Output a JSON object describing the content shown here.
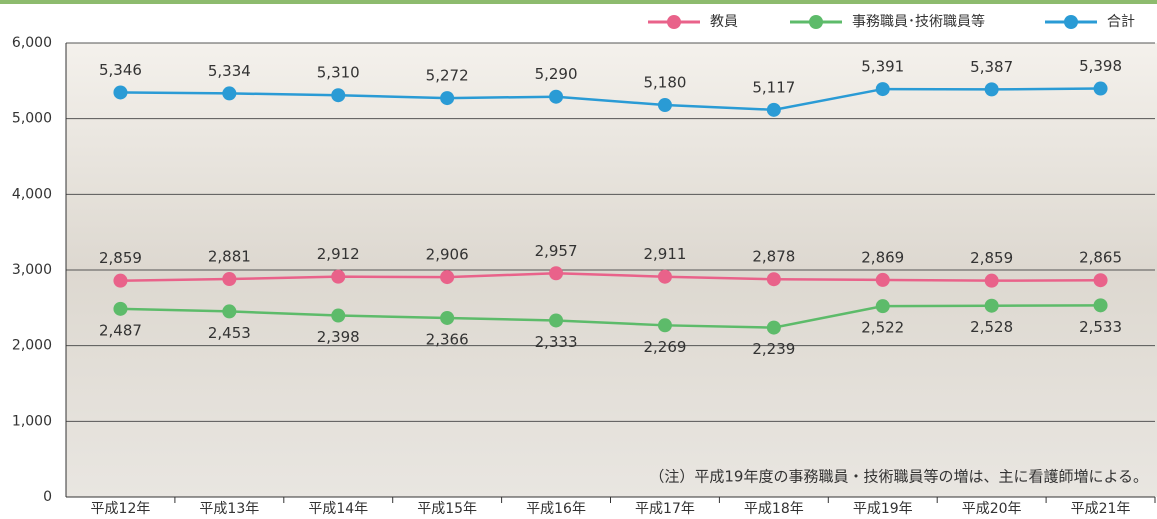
{
  "chart_data": {
    "type": "line",
    "categories": [
      "平成12年",
      "平成13年",
      "平成14年",
      "平成15年",
      "平成16年",
      "平成17年",
      "平成18年",
      "平成19年",
      "平成20年",
      "平成21年"
    ],
    "series": [
      {
        "name": "教員",
        "color": "#e9628a",
        "values": [
          2859,
          2881,
          2912,
          2906,
          2957,
          2911,
          2878,
          2869,
          2859,
          2865
        ],
        "value_labels": [
          "2,859",
          "2,881",
          "2,912",
          "2,906",
          "2,957",
          "2,911",
          "2,878",
          "2,869",
          "2,859",
          "2,865"
        ]
      },
      {
        "name": "事務職員･技術職員等",
        "color": "#5dbb6a",
        "values": [
          2487,
          2453,
          2398,
          2366,
          2333,
          2269,
          2239,
          2522,
          2528,
          2533
        ],
        "value_labels": [
          "2,487",
          "2,453",
          "2,398",
          "2,366",
          "2,333",
          "2,269",
          "2,239",
          "2,522",
          "2,528",
          "2,533"
        ]
      },
      {
        "name": "合計",
        "color": "#2a9bd5",
        "values": [
          5346,
          5334,
          5310,
          5272,
          5290,
          5180,
          5117,
          5391,
          5387,
          5398
        ],
        "value_labels": [
          "5,346",
          "5,334",
          "5,310",
          "5,272",
          "5,290",
          "5,180",
          "5,117",
          "5,391",
          "5,387",
          "5,398"
        ]
      }
    ],
    "ylim": [
      0,
      6000
    ],
    "yticks": [
      0,
      {
        "value": 1000,
        "label": "1,000"
      },
      {
        "value": 2000,
        "label": "2,000"
      },
      {
        "value": 3000,
        "label": "3,000"
      },
      {
        "value": 4000,
        "label": "4,000"
      },
      {
        "value": 5000,
        "label": "5,000"
      },
      {
        "value": 6000,
        "label": "6,000"
      }
    ],
    "grid": true,
    "legend": "top-right",
    "annotation": "（注）平成19年度の事務職員・技術職員等の増は、主に看護師増による。"
  }
}
